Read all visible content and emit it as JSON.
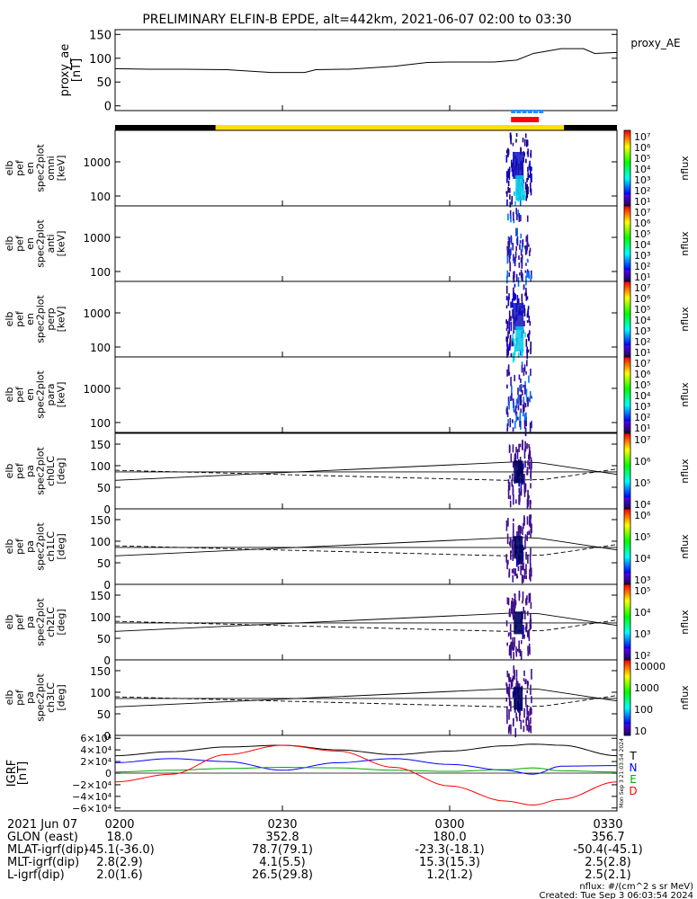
{
  "title": "PRELIMINARY ELFIN-B EPDE, alt=442km, 2021-06-07 02:00 to 03:30",
  "chart_data": [
    {
      "type": "line",
      "name": "proxy_ae",
      "legend": "proxy_AE",
      "ylabel_lines": [
        "proxy_ae",
        "[nT]"
      ],
      "ylim": [
        -10,
        160
      ],
      "yticks": [
        "150",
        "100",
        "50",
        "0"
      ],
      "ytick_values": [
        150,
        100,
        50,
        0
      ],
      "x_minutes": [
        0,
        6,
        12,
        20,
        28,
        34,
        36,
        42,
        50,
        56,
        60,
        68,
        72,
        75,
        80,
        84,
        86,
        90
      ],
      "values": [
        78,
        77,
        77,
        76,
        70,
        70,
        76,
        77,
        83,
        91,
        92,
        92,
        96,
        110,
        120,
        120,
        110,
        112
      ]
    },
    {
      "type": "heatmap",
      "panels": [
        {
          "ylabel_lines": [
            "elb",
            "pef",
            "en",
            "spec2plot",
            "omni",
            "[keV]"
          ],
          "yticks": [
            "1000",
            "100"
          ],
          "colorbar_ticks": [
            "10⁷",
            "10⁶",
            "10⁵",
            "10⁴",
            "10³",
            "10²",
            "10¹"
          ],
          "zlabel": "nflux"
        },
        {
          "ylabel_lines": [
            "elb",
            "pef",
            "en",
            "spec2plot",
            "anti",
            "[keV]"
          ],
          "yticks": [
            "1000",
            "100"
          ],
          "colorbar_ticks": [
            "10⁷",
            "10⁶",
            "10⁵",
            "10⁴",
            "10³",
            "10²",
            "10¹"
          ],
          "zlabel": "nflux"
        },
        {
          "ylabel_lines": [
            "elb",
            "pef",
            "en",
            "spec2plot",
            "perp",
            "[keV]"
          ],
          "yticks": [
            "1000",
            "100"
          ],
          "colorbar_ticks": [
            "10⁷",
            "10⁶",
            "10⁵",
            "10⁴",
            "10³",
            "10²",
            "10¹"
          ],
          "zlabel": "nflux"
        },
        {
          "ylabel_lines": [
            "elb",
            "pef",
            "en",
            "spec2plot",
            "para",
            "[keV]"
          ],
          "yticks": [
            "1000",
            "100"
          ],
          "colorbar_ticks": [
            "10⁷",
            "10⁶",
            "10⁵",
            "10⁴",
            "10³",
            "10²",
            "10¹"
          ],
          "zlabel": "nflux"
        },
        {
          "ylabel_lines": [
            "elb",
            "pef",
            "pa",
            "spec2plot",
            "ch0LC",
            "[deg]"
          ],
          "yticks": [
            "150",
            "100",
            "50",
            "0"
          ],
          "colorbar_ticks": [
            "10⁷",
            "10⁶",
            "10⁵",
            "10⁴"
          ],
          "zlabel": "nflux"
        },
        {
          "ylabel_lines": [
            "elb",
            "pef",
            "pa",
            "spec2plot",
            "ch1LC",
            "[deg]"
          ],
          "yticks": [
            "150",
            "100",
            "50",
            "0"
          ],
          "colorbar_ticks": [
            "10⁶",
            "10⁵",
            "10⁴",
            "10³"
          ],
          "zlabel": "nflux"
        },
        {
          "ylabel_lines": [
            "elb",
            "pef",
            "pa",
            "spec2plot",
            "ch2LC",
            "[deg]"
          ],
          "yticks": [
            "150",
            "100",
            "50",
            "0"
          ],
          "colorbar_ticks": [
            "10⁵",
            "10⁴",
            "10³",
            "10²"
          ],
          "zlabel": "nflux"
        },
        {
          "ylabel_lines": [
            "elb",
            "pef",
            "pa",
            "spec2plot",
            "ch3LC",
            "[deg]"
          ],
          "yticks": [
            "150",
            "100",
            "50",
            "0"
          ],
          "colorbar_ticks": [
            "10000",
            "1000",
            "100",
            "10"
          ],
          "zlabel": "nflux"
        }
      ],
      "burst_window_minutes": [
        71,
        76
      ]
    },
    {
      "type": "line",
      "name": "IGRF",
      "ylabel_lines": [
        "IGRF",
        "[nT]"
      ],
      "yticks": [
        "6×10⁴",
        "4×10⁴",
        "2×10⁴",
        "0",
        "−2×10⁴",
        "−4×10⁴",
        "−6×10⁴"
      ],
      "ytick_values": [
        60000,
        40000,
        20000,
        0,
        -20000,
        -40000,
        -60000
      ],
      "ylim": [
        -65000,
        65000
      ],
      "x_minutes": [
        0,
        10,
        20,
        30,
        40,
        50,
        60,
        70,
        75,
        80,
        90
      ],
      "series": [
        {
          "name": "T",
          "color": "#000000",
          "values": [
            30000,
            37000,
            45000,
            48000,
            40000,
            32000,
            38000,
            47000,
            50000,
            48000,
            30000
          ]
        },
        {
          "name": "N",
          "color": "#0000ff",
          "values": [
            18000,
            25000,
            20000,
            5000,
            18000,
            25000,
            15000,
            5000,
            -2000,
            12000,
            13000
          ]
        },
        {
          "name": "E",
          "color": "#00aa00",
          "values": [
            2000,
            5000,
            8000,
            10000,
            9000,
            5000,
            3000,
            6000,
            9000,
            4000,
            2000
          ]
        },
        {
          "name": "D",
          "color": "#ff0000",
          "values": [
            -15000,
            -2000,
            32000,
            48000,
            38000,
            10000,
            -22000,
            -48000,
            -55000,
            -45000,
            -15000
          ]
        }
      ],
      "created_vertical": "Mon Sep  3 21:03:54 2024"
    }
  ],
  "xaxis": {
    "tick_labels": [
      "0200",
      "0230",
      "0300",
      "0330"
    ],
    "rows": [
      {
        "label": "2021 Jun 07",
        "values": [
          "0200",
          "0230",
          "0300",
          "0330"
        ]
      },
      {
        "label": "GLON (east)",
        "values": [
          "18.0",
          "352.8",
          "180.0",
          "356.7"
        ]
      },
      {
        "label": "MLAT-igrf(dip)",
        "values": [
          "-45.1(-36.0)",
          "78.7(79.1)",
          "-23.3(-18.1)",
          "-50.4(-45.1)"
        ]
      },
      {
        "label": "MLT-igrf(dip)",
        "values": [
          "2.8(2.9)",
          "4.1(5.5)",
          "15.3(15.3)",
          "2.5(2.8)"
        ]
      },
      {
        "label": "L-igrf(dip)",
        "values": [
          "2.0(1.6)",
          "26.5(29.8)",
          "1.2(1.2)",
          "2.5(2.1)"
        ]
      }
    ]
  },
  "footer": {
    "units": "nflux: #/(cm^2 s sr MeV)",
    "created": "Created: Tue Sep  3 06:03:54 2024"
  },
  "colors": {
    "yellow_bar": "#ffe000",
    "black_bar": "#000000",
    "red_bar": "#ff0000",
    "blue_bar": "#1e90ff"
  }
}
